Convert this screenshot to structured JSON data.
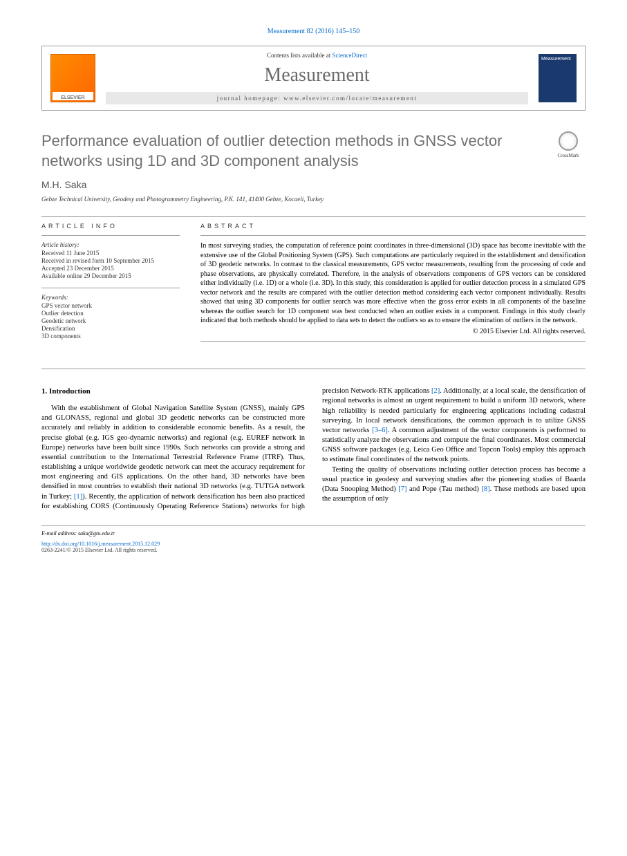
{
  "citation": "Measurement 82 (2016) 145–150",
  "header": {
    "publisher_name": "ELSEVIER",
    "contents_prefix": "Contents lists available at ",
    "contents_link": "ScienceDirect",
    "journal_name": "Measurement",
    "homepage_prefix": "journal homepage: ",
    "homepage_url": "www.elsevier.com/locate/measurement",
    "cover_text": "Measurement"
  },
  "article": {
    "title": "Performance evaluation of outlier detection methods in GNSS vector networks using 1D and 3D component analysis",
    "crossmark_label": "CrossMark",
    "authors": "M.H. Saka",
    "affiliation": "Gebze Technical University, Geodesy and Photogrammetry Engineering, P.K. 141, 41400 Gebze, Kocaeli, Turkey"
  },
  "info": {
    "header": "ARTICLE INFO",
    "history_label": "Article history:",
    "history": {
      "received": "Received 11 June 2015",
      "revised": "Received in revised form 10 September 2015",
      "accepted": "Accepted 23 December 2015",
      "online": "Available online 29 December 2015"
    },
    "keywords_label": "Keywords:",
    "keywords": [
      "GPS vector network",
      "Outlier detection",
      "Geodetic network",
      "Densification",
      "3D components"
    ]
  },
  "abstract": {
    "header": "ABSTRACT",
    "text": "In most surveying studies, the computation of reference point coordinates in three-dimensional (3D) space has become inevitable with the extensive use of the Global Positioning System (GPS). Such computations are particularly required in the establishment and densification of 3D geodetic networks. In contrast to the classical measurements, GPS vector measurements, resulting from the processing of code and phase observations, are physically correlated. Therefore, in the analysis of observations components of GPS vectors can be considered either individually (i.e. 1D) or a whole (i.e. 3D). In this study, this consideration is applied for outlier detection process in a simulated GPS vector network and the results are compared with the outlier detection method considering each vector component individually. Results showed that using 3D components for outlier search was more effective when the gross error exists in all components of the baseline whereas the outlier search for 1D component was best conducted when an outlier exists in a component. Findings in this study clearly indicated that both methods should be applied to data sets to detect the outliers so as to ensure the elimination of outliers in the network.",
    "copyright": "© 2015 Elsevier Ltd. All rights reserved."
  },
  "body": {
    "section_number": "1.",
    "section_title": "Introduction",
    "para1": "With the establishment of Global Navigation Satellite System (GNSS), mainly GPS and GLONASS, regional and global 3D geodetic networks can be constructed more accurately and reliably in addition to considerable economic benefits. As a result, the precise global (e.g. IGS geo-dynamic networks) and regional (e.g. EUREF network in Europe) networks have been built since 1990s. Such networks can provide a strong and essential contribution to the International Terrestrial Reference Frame (ITRF). Thus, establishing a unique worldwide geodetic network can meet the accuracy requirement for most engineering and GIS applications. On the other hand, 3D networks have been densified in most countries to establish their national 3D networks (e.g. TUTGA network in Turkey; ",
    "ref1": "[1]",
    "para1_cont": "). Recently, the application of network densification has been also",
    "para2_start": "practiced for establishing CORS (Continuously Operating Reference Stations) networks for high precision Network-RTK applications ",
    "ref2": "[2]",
    "para2_mid": ". Additionally, at a local scale, the densification of regional networks is almost an urgent requirement to build a uniform 3D network, where high reliability is needed particularly for engineering applications including cadastral surveying. In local network densifications, the common approach is to utilize GNSS vector networks ",
    "ref3_6": "[3–6]",
    "para2_end": ". A common adjustment of the vector components is performed to statistically analyze the observations and compute the final coordinates. Most commercial GNSS software packages (e.g. Leica Geo Office and Topcon Tools) employ this approach to estimate final coordinates of the network points.",
    "para3_start": "Testing the quality of observations including outlier detection process has become a usual practice in geodesy and surveying studies after the pioneering studies of Baarda (Data Snooping Method) ",
    "ref7": "[7]",
    "para3_mid": " and Pope (Tau method) ",
    "ref8": "[8]",
    "para3_end": ". These methods are based upon the assumption of only"
  },
  "footer": {
    "email_label": "E-mail address: ",
    "email": "saka@gtu.edu.tr",
    "doi": "http://dx.doi.org/10.1016/j.measurement.2015.12.029",
    "issn": "0263-2241/© 2015 Elsevier Ltd. All rights reserved."
  }
}
